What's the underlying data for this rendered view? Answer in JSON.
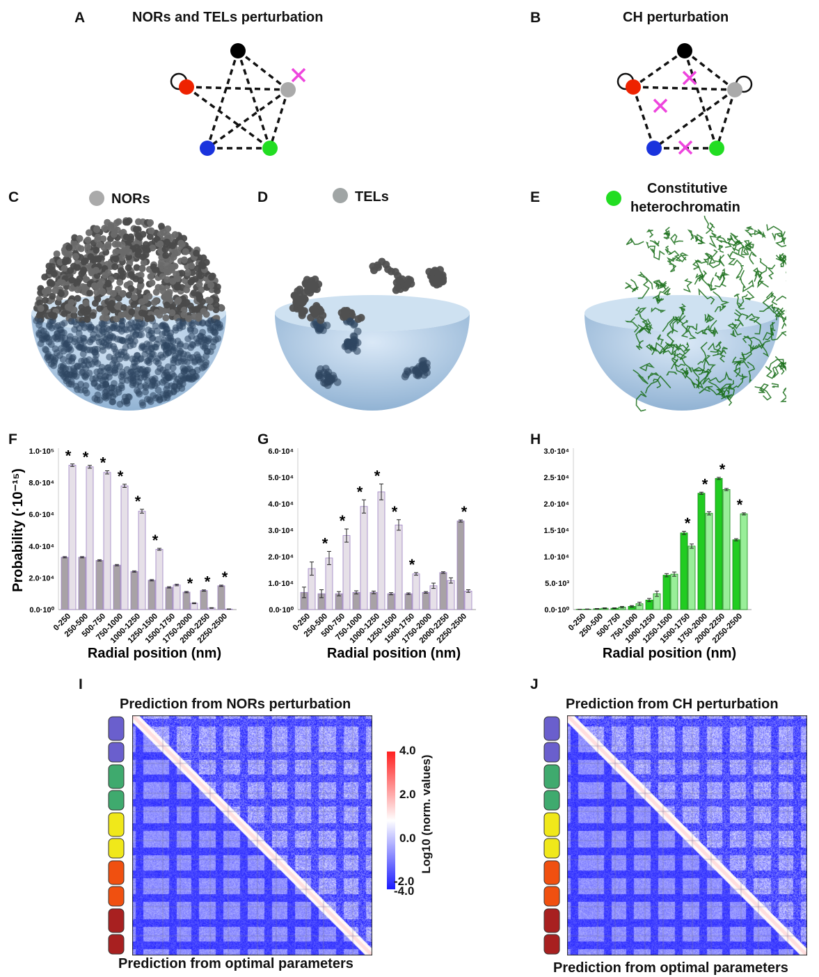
{
  "panels": {
    "A": {
      "label": "A",
      "title": "NORs and TELs perturbation"
    },
    "B": {
      "label": "B",
      "title": "CH perturbation"
    },
    "C": {
      "label": "C",
      "legend": "NORs"
    },
    "D": {
      "label": "D",
      "legend": "TELs"
    },
    "E": {
      "label": "E",
      "legend_line1": "Constitutive",
      "legend_line2": "heterochromatin"
    },
    "F": {
      "label": "F"
    },
    "G": {
      "label": "G"
    },
    "H": {
      "label": "H"
    },
    "I": {
      "label": "I",
      "top_title": "Prediction from NORs perturbation",
      "bottom_title": "Prediction from optimal parameters"
    },
    "J": {
      "label": "J",
      "top_title": "Prediction from CH perturbation",
      "bottom_title": "Prediction from optimal parameters"
    }
  },
  "colors": {
    "dark_bar": "#a8a2a6",
    "light_bar": "#e6e0e8",
    "bar_edge": "#9b7fc2",
    "green_dark": "#22cc22",
    "green_light": "#99ee99",
    "heatmap_low": "#1a1aff",
    "heatmap_mid": "#ffffff",
    "heatmap_high": "#ff2020",
    "node_black": "#000000",
    "node_red": "#ee2200",
    "node_gray": "#aaaaaa",
    "node_blue": "#1a33dd",
    "node_green": "#22dd22",
    "cross": "#ee44dd",
    "sphere": "#a9c9e8",
    "chromatin_gray": "#555555",
    "chromatin_green": "#1a6e1a",
    "chromosomes": [
      "#6a5fcd",
      "#3faa6e",
      "#f0e81a",
      "#f05010",
      "#a82020"
    ]
  },
  "colorbar": {
    "label": "Log10 (norm. values)",
    "ticks": [
      "4.0",
      "2.0",
      "0.0",
      "-2.0",
      "-4.0"
    ]
  },
  "chart_data": [
    {
      "panel": "F",
      "type": "bar",
      "categories": [
        "0-250",
        "250-500",
        "500-750",
        "750-1000",
        "1000-1250",
        "1250-1500",
        "1500-1750",
        "1750-2000",
        "2000-2250",
        "2250-2500"
      ],
      "ylabel": "Probability (·10⁻¹⁵)",
      "xlabel": "Radial position (nm)",
      "ylim": [
        0,
        100000
      ],
      "ytick_labels": [
        "0.0·10⁰",
        "2.0·10⁴",
        "4.0·10⁴",
        "6.0·10⁴",
        "8.0·10⁴",
        "1.0·10⁵"
      ],
      "ytick_values": [
        0,
        20000,
        40000,
        60000,
        80000,
        100000
      ],
      "series": [
        {
          "values": [
            33000,
            33000,
            31000,
            28000,
            24000,
            18500,
            14000,
            11000,
            12000,
            15000
          ],
          "errors": [
            400,
            400,
            400,
            400,
            400,
            400,
            400,
            400,
            400,
            400
          ]
        },
        {
          "values": [
            91000,
            90000,
            86500,
            78000,
            62000,
            38000,
            15500,
            4000,
            1000,
            300
          ],
          "errors": [
            800,
            900,
            1000,
            1000,
            1200,
            600,
            500,
            300,
            200,
            100
          ]
        }
      ],
      "significant": [
        true,
        true,
        true,
        true,
        true,
        true,
        false,
        true,
        true,
        true
      ],
      "star": "*"
    },
    {
      "panel": "G",
      "type": "bar",
      "categories": [
        "0-250",
        "250-500",
        "500-750",
        "750-1000",
        "1000-1250",
        "1250-1500",
        "1500-1750",
        "1750-2000",
        "2000-2250",
        "2250-2500"
      ],
      "xlabel": "Radial position (nm)",
      "ylim": [
        0,
        60000
      ],
      "ytick_labels": [
        "0.0·10⁰",
        "1.0·10⁴",
        "2.0·10⁴",
        "3.0·10⁴",
        "4.0·10⁴",
        "5.0·10⁴",
        "6.0·10⁴"
      ],
      "ytick_values": [
        0,
        10000,
        20000,
        30000,
        40000,
        50000,
        60000
      ],
      "series": [
        {
          "values": [
            6500,
            6000,
            6000,
            6500,
            6500,
            6000,
            6000,
            6500,
            14000,
            33500
          ],
          "errors": [
            2000,
            1500,
            800,
            600,
            500,
            400,
            300,
            300,
            300,
            400
          ]
        },
        {
          "values": [
            15500,
            19500,
            28000,
            39000,
            44500,
            32000,
            13500,
            9000,
            11000,
            7000
          ],
          "errors": [
            2500,
            2500,
            2500,
            2500,
            3000,
            2000,
            500,
            1000,
            1000,
            500
          ]
        }
      ],
      "significant": [
        false,
        true,
        true,
        true,
        true,
        true,
        true,
        false,
        false,
        true
      ],
      "star": "*"
    },
    {
      "panel": "H",
      "type": "bar",
      "categories": [
        "0-250",
        "250-500",
        "500-750",
        "750-1000",
        "1000-1250",
        "1250-1500",
        "1500-1750",
        "1750-2000",
        "2000-2250",
        "2250-2500"
      ],
      "xlabel": "Radial position (nm)",
      "ylim": [
        0,
        30000
      ],
      "ytick_labels": [
        "0.0·10⁰",
        "5.0·10³",
        "1.0·10⁴",
        "1.5·10⁴",
        "2.0·10⁴",
        "2.5·10⁴",
        "3.0·10⁴"
      ],
      "ytick_values": [
        0,
        5000,
        10000,
        15000,
        20000,
        25000,
        30000
      ],
      "series": [
        {
          "values": [
            50,
            150,
            250,
            600,
            1800,
            6500,
            14500,
            22000,
            24800,
            13200
          ],
          "errors": [
            20,
            50,
            80,
            150,
            300,
            300,
            300,
            200,
            200,
            200
          ]
        },
        {
          "values": [
            80,
            250,
            450,
            1100,
            3000,
            6700,
            12000,
            18200,
            22700,
            18100
          ],
          "errors": [
            30,
            80,
            150,
            300,
            500,
            400,
            400,
            300,
            200,
            200
          ]
        }
      ],
      "significant": [
        false,
        false,
        false,
        false,
        false,
        false,
        true,
        true,
        true,
        true
      ],
      "star": "*"
    }
  ]
}
